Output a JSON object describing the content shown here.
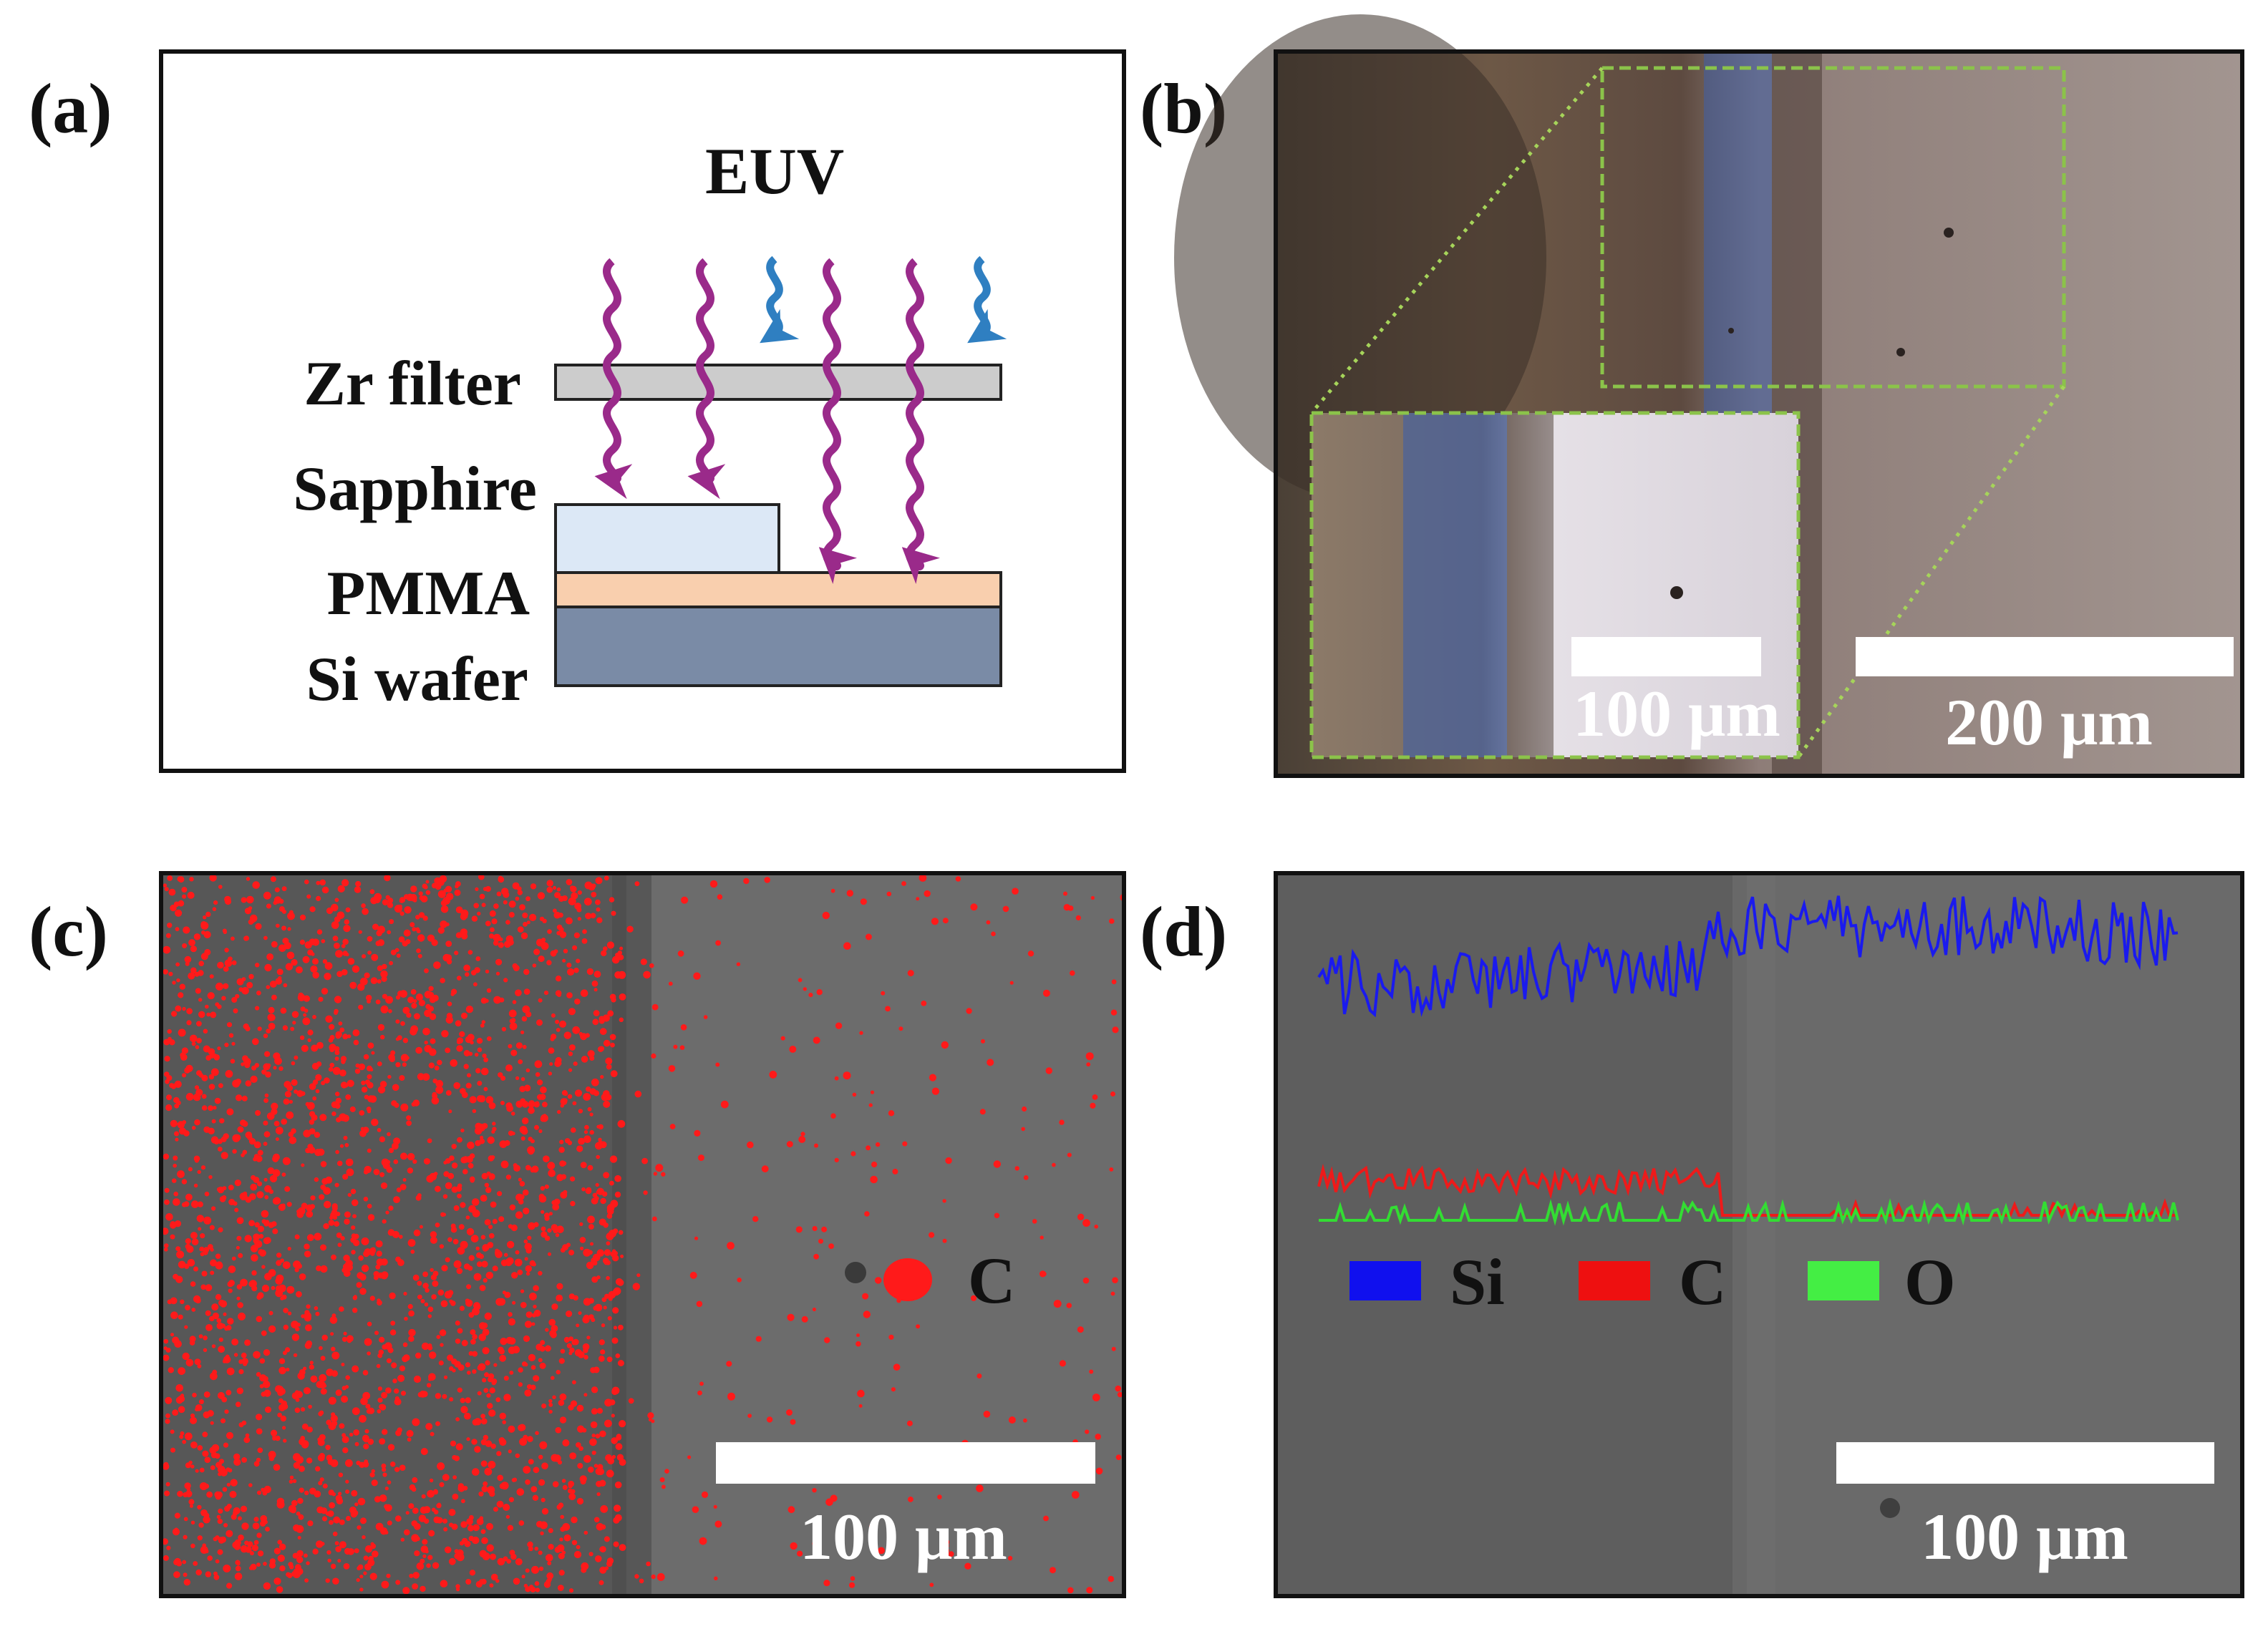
{
  "panels": {
    "a": {
      "label": "(a)",
      "source_label": "EUV",
      "layers": [
        "Zr filter",
        "Sapphire",
        "PMMA",
        "Si wafer"
      ],
      "colors": {
        "filter": "#cccccc",
        "sapphire": "#dce8f6",
        "pmma": "#f9cfae",
        "wafer": "#7a8ba6",
        "euv_wave": "#9a2a8a",
        "blocked_wave": "#2f7fc1"
      }
    },
    "b": {
      "label": "(b)",
      "scale_main": "200 μm",
      "scale_inset": "100 μm",
      "colors": {
        "zoom_outline": "#8bc34a",
        "stripe": "#3e5fa8",
        "exposed": "#9a8a84"
      }
    },
    "c": {
      "label": "(c)",
      "legend_element": "C",
      "legend_color": "#ff1a1a",
      "scale_bar": "100 μm"
    },
    "d": {
      "label": "(d)",
      "legend": [
        {
          "name": "Si",
          "color": "#1010ee"
        },
        {
          "name": "C",
          "color": "#ee1010"
        },
        {
          "name": "O",
          "color": "#44ee44"
        }
      ],
      "scale_bar": "100 μm"
    }
  }
}
